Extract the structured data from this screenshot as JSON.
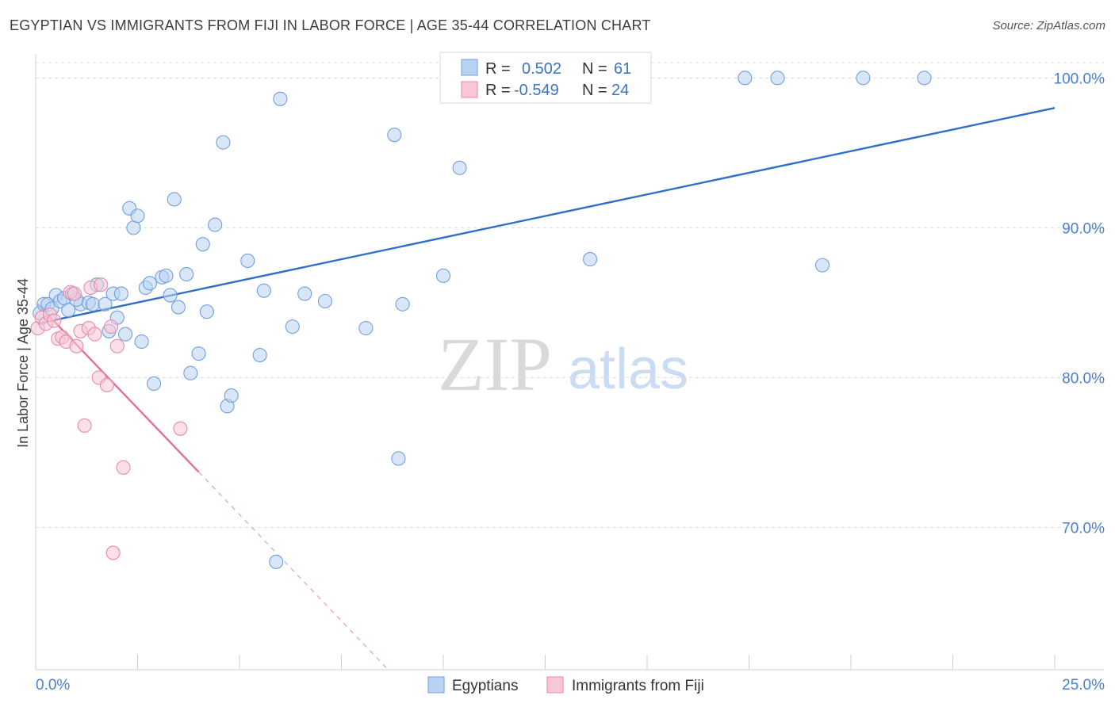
{
  "title": "EGYPTIAN VS IMMIGRANTS FROM FIJI IN LABOR FORCE | AGE 35-44 CORRELATION CHART",
  "source": "Source: ZipAtlas.com",
  "watermark": {
    "zip": "ZIP",
    "atlas": "atlas"
  },
  "colors": {
    "blue": "#6fa0e0",
    "blue_fill": "#b9d1f2",
    "blue_line": "#2f6fc9",
    "pink": "#e98aab",
    "pink_fill": "#f8c6d5",
    "pink_line": "#e0719b",
    "tick_text": "#4a7fd0",
    "grid": "#dcdcdc"
  },
  "legend": {
    "rows": [
      {
        "r_label": "R =",
        "r_value": "0.502",
        "n_label": "N =",
        "n_value": "61",
        "color": "blue"
      },
      {
        "r_label": "R =",
        "r_value": "-0.549",
        "n_label": "N =",
        "n_value": "24",
        "color": "pink"
      }
    ]
  },
  "bottom_legend": [
    {
      "label": "Egyptians",
      "color": "blue"
    },
    {
      "label": "Immigrants from Fiji",
      "color": "pink"
    }
  ],
  "chart_data": {
    "type": "scatter",
    "title": "EGYPTIAN VS IMMIGRANTS FROM FIJI IN LABOR FORCE | AGE 35-44 CORRELATION CHART",
    "xlabel": "",
    "ylabel": "In Labor Force | Age 35-44",
    "xlim": [
      0,
      25
    ],
    "ylim": [
      60.5,
      101.5
    ],
    "x_tick_labels": [
      "0.0%",
      "25.0%"
    ],
    "y_ticks": [
      70,
      80,
      90,
      100
    ],
    "y_tick_labels": [
      "70.0%",
      "80.0%",
      "90.0%",
      "100.0%"
    ],
    "grid": true,
    "series": [
      {
        "name": "Egyptians",
        "color": "blue",
        "points": [
          [
            0.1,
            84.3
          ],
          [
            0.2,
            84.9
          ],
          [
            0.3,
            84.9
          ],
          [
            0.4,
            84.6
          ],
          [
            0.5,
            85.5
          ],
          [
            0.6,
            85.1
          ],
          [
            0.7,
            85.3
          ],
          [
            0.9,
            85.6
          ],
          [
            1.1,
            84.9
          ],
          [
            1.3,
            85.0
          ],
          [
            1.4,
            84.9
          ],
          [
            1.5,
            86.2
          ],
          [
            1.7,
            84.9
          ],
          [
            1.8,
            83.1
          ],
          [
            1.9,
            85.6
          ],
          [
            2.1,
            85.6
          ],
          [
            2.2,
            82.9
          ],
          [
            2.3,
            91.3
          ],
          [
            2.4,
            90.0
          ],
          [
            2.5,
            90.8
          ],
          [
            2.6,
            82.4
          ],
          [
            2.7,
            86.0
          ],
          [
            2.8,
            86.3
          ],
          [
            2.9,
            79.6
          ],
          [
            3.1,
            86.7
          ],
          [
            3.2,
            86.8
          ],
          [
            3.3,
            85.5
          ],
          [
            3.4,
            91.9
          ],
          [
            3.5,
            84.7
          ],
          [
            3.7,
            86.9
          ],
          [
            3.8,
            80.3
          ],
          [
            4.0,
            81.6
          ],
          [
            4.1,
            88.9
          ],
          [
            4.2,
            84.4
          ],
          [
            4.4,
            90.2
          ],
          [
            4.6,
            95.7
          ],
          [
            4.7,
            78.1
          ],
          [
            4.8,
            78.8
          ],
          [
            5.2,
            87.8
          ],
          [
            5.5,
            81.5
          ],
          [
            5.6,
            85.8
          ],
          [
            5.9,
            67.7
          ],
          [
            6.0,
            98.6
          ],
          [
            6.3,
            83.4
          ],
          [
            6.6,
            85.6
          ],
          [
            7.1,
            85.1
          ],
          [
            8.1,
            83.3
          ],
          [
            8.8,
            96.2
          ],
          [
            8.9,
            74.6
          ],
          [
            9.0,
            84.9
          ],
          [
            10.0,
            86.8
          ],
          [
            10.4,
            94.0
          ],
          [
            13.6,
            87.9
          ],
          [
            17.4,
            100.0
          ],
          [
            18.2,
            100.0
          ],
          [
            19.3,
            87.5
          ],
          [
            20.3,
            100.0
          ],
          [
            21.8,
            100.0
          ],
          [
            0.8,
            84.5
          ],
          [
            1.0,
            85.2
          ],
          [
            2.0,
            84.0
          ]
        ],
        "trend": {
          "x": [
            0.05,
            25.0
          ],
          "y": [
            83.6,
            98.0
          ],
          "style": "solid"
        }
      },
      {
        "name": "Immigrants from Fiji",
        "color": "pink",
        "points": [
          [
            0.05,
            83.3
          ],
          [
            0.15,
            84.0
          ],
          [
            0.25,
            83.6
          ],
          [
            0.35,
            84.2
          ],
          [
            0.45,
            83.8
          ],
          [
            0.55,
            82.6
          ],
          [
            0.65,
            82.7
          ],
          [
            0.75,
            82.4
          ],
          [
            0.85,
            85.7
          ],
          [
            0.95,
            85.6
          ],
          [
            1.0,
            82.1
          ],
          [
            1.1,
            83.1
          ],
          [
            1.2,
            76.8
          ],
          [
            1.3,
            83.3
          ],
          [
            1.35,
            86.0
          ],
          [
            1.45,
            82.9
          ],
          [
            1.55,
            80.0
          ],
          [
            1.6,
            86.2
          ],
          [
            1.75,
            79.5
          ],
          [
            1.85,
            83.4
          ],
          [
            1.9,
            68.3
          ],
          [
            2.0,
            82.1
          ],
          [
            2.15,
            74.0
          ],
          [
            3.55,
            76.6
          ]
        ],
        "trend": {
          "x": [
            0.05,
            4.0
          ],
          "y": [
            84.9,
            73.7
          ],
          "style": "solid"
        },
        "trend_extension": {
          "x": [
            4.0,
            9.0
          ],
          "y": [
            73.7,
            59.5
          ],
          "style": "dashed"
        }
      }
    ]
  }
}
